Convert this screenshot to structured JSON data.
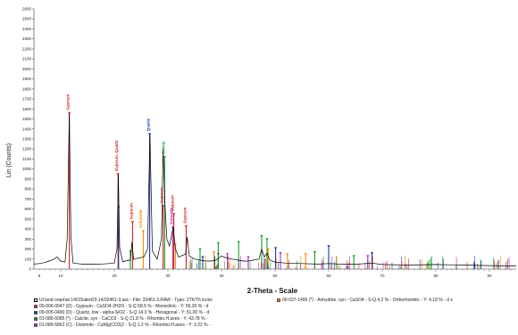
{
  "chart_data": {
    "type": "line",
    "ylabel": "Lin (Counts)",
    "xlabel": "2-Theta - Scale",
    "xlim": [
      5,
      95
    ],
    "ylim": [
      0,
      2600
    ],
    "x_ticks": [
      6,
      10,
      20,
      30,
      40,
      50,
      60,
      70,
      80,
      90
    ],
    "y_ticks": [
      0,
      100,
      200,
      300,
      400,
      500,
      600,
      700,
      800,
      900,
      1000,
      1100,
      1200,
      1300,
      1400,
      1500,
      1600,
      1700,
      1800,
      1900,
      2000,
      2100,
      2200,
      2300,
      2400,
      2500,
      2600
    ],
    "series": [
      {
        "color": "#000000",
        "x": [
          5,
          6,
          7,
          7.8,
          8.6,
          9.3,
          10,
          10.8,
          11.2,
          11.6,
          11.9,
          12.3,
          13,
          14,
          15,
          16,
          17,
          18,
          19,
          20,
          20.5,
          20.75,
          21.0,
          21.6,
          22,
          23.0,
          23.3,
          23.6,
          24.5,
          25.5,
          26.2,
          26.65,
          27.1,
          28,
          28.8,
          29.1,
          29.4,
          29.8,
          30.3,
          31.0,
          31.4,
          32,
          33.3,
          33.6,
          34,
          35,
          36,
          37,
          38,
          39,
          40,
          41,
          42,
          43,
          44,
          45,
          46,
          47,
          47.5,
          48.0,
          48.5,
          49,
          50,
          52,
          55,
          58,
          60,
          62,
          65,
          68,
          70,
          75,
          80,
          85,
          90,
          95
        ],
        "y": [
          50,
          55,
          65,
          80,
          95,
          120,
          80,
          70,
          300,
          1560,
          320,
          60,
          55,
          50,
          50,
          48,
          50,
          52,
          55,
          60,
          200,
          950,
          210,
          70,
          80,
          90,
          270,
          95,
          110,
          120,
          200,
          1350,
          180,
          100,
          300,
          1200,
          700,
          300,
          230,
          420,
          200,
          120,
          150,
          320,
          130,
          100,
          90,
          80,
          80,
          90,
          130,
          110,
          100,
          90,
          80,
          80,
          90,
          100,
          200,
          120,
          160,
          90,
          70,
          60,
          55,
          50,
          55,
          50,
          48,
          60,
          45,
          40,
          45,
          40,
          35,
          30
        ]
      }
    ],
    "phases": [
      {
        "name": "Gypsum",
        "color": "#d42020",
        "peaks": [
          [
            11.6,
            1560
          ],
          [
            20.7,
            950
          ],
          [
            23.4,
            470
          ],
          [
            29.1,
            630
          ],
          [
            31.1,
            550
          ],
          [
            33.4,
            430
          ]
        ]
      },
      {
        "name": "Quartz",
        "color": "#1a3aa8",
        "peaks": [
          [
            20.8,
            620
          ],
          [
            26.6,
            1350
          ],
          [
            36.5,
            120
          ],
          [
            39.4,
            150
          ],
          [
            50.1,
            210
          ],
          [
            60.0,
            230
          ],
          [
            68.1,
            160
          ]
        ]
      },
      {
        "name": "Calcite",
        "color": "#1a9a2a",
        "peaks": [
          [
            23.0,
            180
          ],
          [
            29.4,
            1120
          ],
          [
            36.0,
            200
          ],
          [
            39.4,
            260
          ],
          [
            43.2,
            270
          ],
          [
            47.5,
            330
          ],
          [
            48.5,
            300
          ],
          [
            57.4,
            170
          ],
          [
            64.7,
            130
          ]
        ]
      },
      {
        "name": "Dolomite",
        "color": "#b030c0",
        "peaks": [
          [
            30.9,
            420
          ],
          [
            41.1,
            150
          ],
          [
            45.0,
            120
          ],
          [
            51.0,
            160
          ],
          [
            67.3,
            130
          ]
        ]
      },
      {
        "name": "Anhydrite",
        "color": "#ff8a00",
        "peaks": [
          [
            25.4,
            380
          ],
          [
            31.4,
            250
          ],
          [
            38.6,
            170
          ],
          [
            48.7,
            200
          ],
          [
            52.3,
            150
          ],
          [
            55.7,
            150
          ]
        ]
      }
    ],
    "peak_tags": [
      {
        "text": "Gypsum",
        "x": 11.6,
        "y": 1570,
        "color": "#d42020"
      },
      {
        "text": "Gypsum, Quartz",
        "x": 20.7,
        "y": 960,
        "color": "#d42020"
      },
      {
        "text": "Gypsum",
        "x": 23.4,
        "y": 480,
        "color": "#d42020"
      },
      {
        "text": "Anhydrite",
        "x": 25.2,
        "y": 390,
        "color": "#ff8a00"
      },
      {
        "text": "Quartz",
        "x": 26.6,
        "y": 1360,
        "color": "#1a3aa8"
      },
      {
        "text": "Calcite",
        "x": 29.4,
        "y": 1130,
        "color": "#1a9a2a"
      },
      {
        "text": "Gypsum",
        "x": 29.1,
        "y": 640,
        "color": "#d42020"
      },
      {
        "text": "Gypsum",
        "x": 31.1,
        "y": 560,
        "color": "#d42020"
      },
      {
        "text": "Dolomite",
        "x": 30.9,
        "y": 430,
        "color": "#b030c0"
      },
      {
        "text": "Gypsum",
        "x": 33.4,
        "y": 440,
        "color": "#d42020"
      }
    ]
  },
  "legend": [
    {
      "color": "#ffffff",
      "text": "Ul land oraphat 14015alert29.14/32461-3.asc - File: 33461-3.RAW - Type: 2Th/Th locke"
    },
    {
      "color": "#d42020",
      "text": "00-006-0047 (D) - Gypsum - CaSO4·2H2O - S-Q 58.5 % - Monoclinic - Y: 56.30 % - d"
    },
    {
      "color": "#1a3aa8",
      "text": "00-005-0490 (D) - Quartz, low - alpha-SiO2 - S-Q 14.3 % - Hexagonal - Y: 51.00 % - d"
    },
    {
      "color": "#1a9a2a",
      "text": "01-086-0085 (*) - Calcite, syn - CaCO3 - S-Q 21.8 % - Rhombo.H.axes - Y: 43.78 % -"
    },
    {
      "color": "#b030c0",
      "text": "01-089-5862 (C) - Dolomite - CaMg(CO3)2 - S-Q 1.2 % - Rhombo.H.axes - Y: 3.22 % -"
    },
    {
      "color": "#ff8a00",
      "text": "00-037-1496 (*) - Anhydrite, syn - CaSO4 - S-Q 4.2 % - Orthorhombic - Y: 4.18 % - d x"
    }
  ]
}
